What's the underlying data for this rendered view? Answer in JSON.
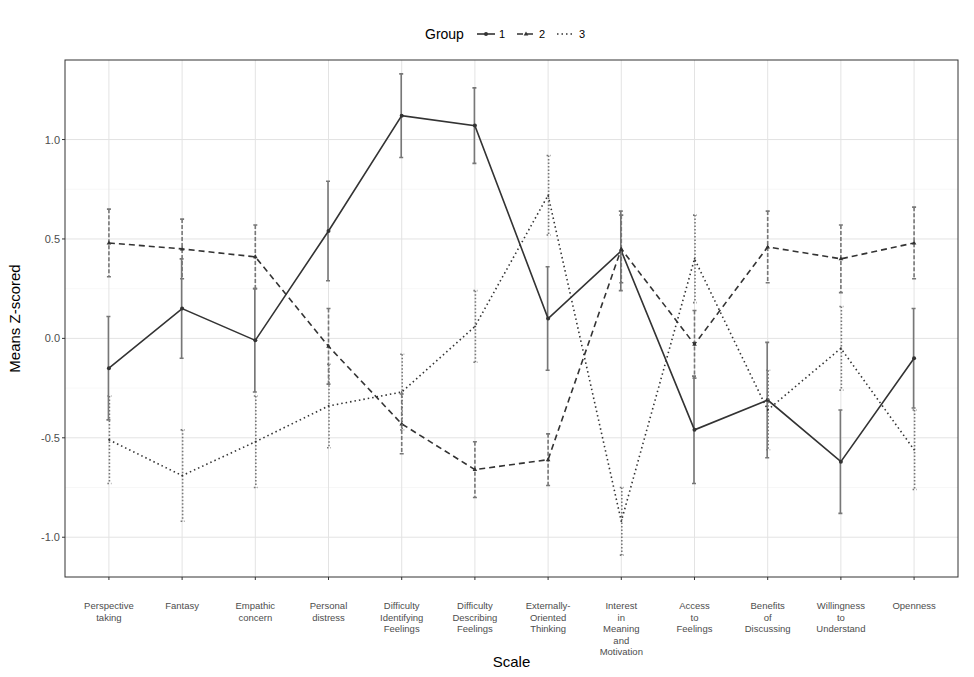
{
  "chart_data": {
    "type": "line",
    "x_label": "Scale",
    "y_label": "Means Z-scored",
    "legend_title": "Group",
    "legend": "top",
    "grid": true,
    "categories": [
      "Perspective taking",
      "Fantasy",
      "Empathic concern",
      "Personal distress",
      "Difficulty Identifying Feelings",
      "Difficulty Describing Feelings",
      "Externally-Oriented Thinking",
      "Interest in Meaning and Motivation",
      "Access to Feelings",
      "Benefits of Discussing",
      "Willingness to Understand",
      "Openness"
    ],
    "ylim": [
      -1.2,
      1.4
    ],
    "yticks": [
      {
        "value": -1,
        "label": "-1.0"
      },
      {
        "value": -0.5,
        "label": "-0.5"
      },
      {
        "value": 0,
        "label": "0.0"
      },
      {
        "value": 0.5,
        "label": "0.5"
      },
      {
        "value": 1,
        "label": "1.0"
      }
    ],
    "series": [
      {
        "name": "1",
        "color": "#333333",
        "line_style": "solid",
        "marker": "circle",
        "values": [
          -0.15,
          0.15,
          -0.01,
          0.54,
          1.12,
          1.07,
          0.1,
          0.44,
          -0.46,
          -0.31,
          -0.62,
          -0.1
        ],
        "errors": [
          0.26,
          0.25,
          0.26,
          0.25,
          0.21,
          0.19,
          0.26,
          0.2,
          0.27,
          0.29,
          0.26,
          0.25
        ]
      },
      {
        "name": "2",
        "color": "#333333",
        "line_style": "dashed",
        "marker": "triangle",
        "values": [
          0.48,
          0.45,
          0.41,
          -0.04,
          -0.43,
          -0.66,
          -0.61,
          0.45,
          -0.03,
          0.46,
          0.4,
          0.48
        ],
        "errors": [
          0.17,
          0.15,
          0.16,
          0.19,
          0.15,
          0.14,
          0.13,
          0.17,
          0.17,
          0.18,
          0.17,
          0.18
        ]
      },
      {
        "name": "3",
        "color": "#333333",
        "line_style": "dotted",
        "marker": "none",
        "values": [
          -0.51,
          -0.69,
          -0.52,
          -0.34,
          -0.27,
          0.06,
          0.72,
          -0.92,
          0.4,
          -0.36,
          -0.05,
          -0.56
        ],
        "errors": [
          0.22,
          0.23,
          0.23,
          0.21,
          0.19,
          0.18,
          0.2,
          0.17,
          0.22,
          0.2,
          0.21,
          0.2
        ]
      }
    ]
  }
}
